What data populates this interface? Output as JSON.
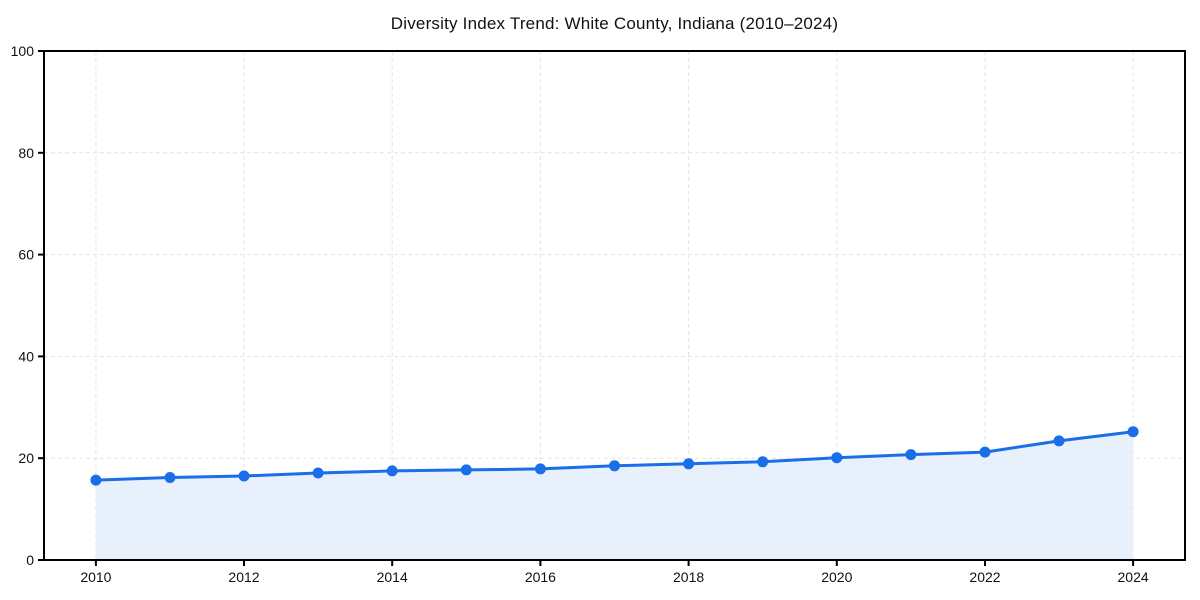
{
  "figure": {
    "background_color": "#ffffff"
  },
  "chart_data": {
    "type": "line",
    "title": "Diversity Index Trend: White County, Indiana (2010–2024)",
    "x": [
      2010,
      2011,
      2012,
      2013,
      2014,
      2015,
      2016,
      2017,
      2018,
      2019,
      2020,
      2021,
      2022,
      2023,
      2024
    ],
    "series": [
      {
        "name": "Diversity Index",
        "values": [
          15.7,
          16.2,
          16.5,
          17.1,
          17.5,
          17.7,
          17.9,
          18.5,
          18.9,
          19.3,
          20.1,
          20.7,
          21.2,
          23.4,
          25.2
        ],
        "line_color": "#1a6ee8",
        "fill_color": "#e8f0fc",
        "marker": "circle"
      }
    ],
    "xlabel": "",
    "ylabel": "",
    "xlim": [
      2009.3,
      2024.7
    ],
    "ylim": [
      0,
      100
    ],
    "xticks": [
      2010,
      2012,
      2014,
      2016,
      2018,
      2020,
      2022,
      2024
    ],
    "yticks": [
      0,
      20,
      40,
      60,
      80,
      100
    ],
    "grid": true,
    "grid_style": "dashed",
    "legend": false,
    "area_fill": true
  },
  "style": {
    "grid_color": "#e4e4e4",
    "axis_color": "#000000",
    "tick_color": "#000000",
    "title_color": "#111111",
    "tick_label_color": "#111111"
  }
}
